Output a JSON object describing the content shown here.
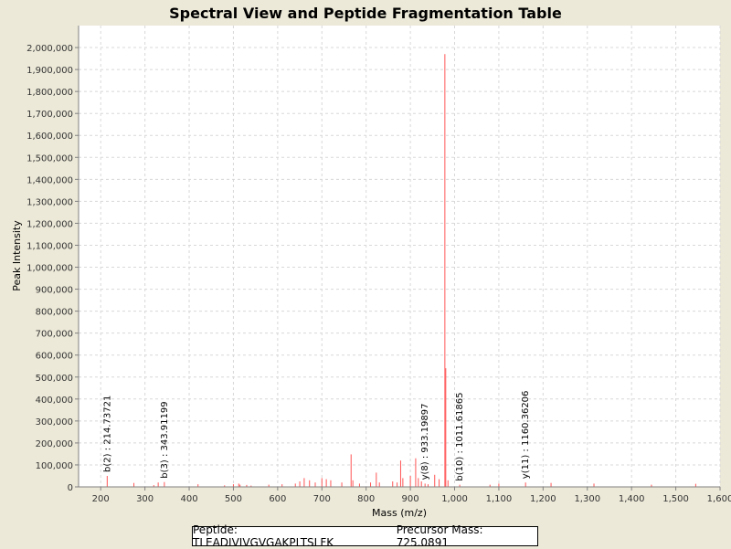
{
  "chart_data": {
    "type": "bar",
    "title": "Spectral View and Peptide Fragmentation Table",
    "xlabel": "Mass (m/z)",
    "ylabel": "Peak Intensity",
    "xlim": [
      150,
      1600
    ],
    "ylim": [
      0,
      2100000
    ],
    "grid": true,
    "x_ticks": [
      200,
      300,
      400,
      500,
      600,
      700,
      800,
      900,
      1000,
      1100,
      1200,
      1300,
      1400,
      1500,
      1600
    ],
    "x_tick_labels": [
      "200",
      "300",
      "400",
      "500",
      "600",
      "700",
      "800",
      "900",
      "1,000",
      "1,100",
      "1,200",
      "1,300",
      "1,400",
      "1,500",
      "1,600"
    ],
    "y_ticks": [
      0,
      100000,
      200000,
      300000,
      400000,
      500000,
      600000,
      700000,
      800000,
      900000,
      1000000,
      1100000,
      1200000,
      1300000,
      1400000,
      1500000,
      1600000,
      1700000,
      1800000,
      1900000,
      2000000
    ],
    "y_tick_labels": [
      "0",
      "100,000",
      "200,000",
      "300,000",
      "400,000",
      "500,000",
      "600,000",
      "700,000",
      "800,000",
      "900,000",
      "1,000,000",
      "1,100,000",
      "1,200,000",
      "1,300,000",
      "1,400,000",
      "1,500,000",
      "1,600,000",
      "1,700,000",
      "1,800,000",
      "1,900,000",
      "2,000,000"
    ],
    "peak_color": "#FF5555",
    "peaks": [
      {
        "mz": 214.7,
        "intensity": 50000
      },
      {
        "mz": 275,
        "intensity": 18000
      },
      {
        "mz": 320,
        "intensity": 8000
      },
      {
        "mz": 330,
        "intensity": 20000
      },
      {
        "mz": 343.9,
        "intensity": 22000
      },
      {
        "mz": 420,
        "intensity": 12000
      },
      {
        "mz": 480,
        "intensity": 7000
      },
      {
        "mz": 500,
        "intensity": 12000
      },
      {
        "mz": 512,
        "intensity": 15000
      },
      {
        "mz": 515,
        "intensity": 10000
      },
      {
        "mz": 530,
        "intensity": 9000
      },
      {
        "mz": 540,
        "intensity": 6000
      },
      {
        "mz": 580,
        "intensity": 10000
      },
      {
        "mz": 610,
        "intensity": 12000
      },
      {
        "mz": 640,
        "intensity": 15000
      },
      {
        "mz": 650,
        "intensity": 25000
      },
      {
        "mz": 660,
        "intensity": 40000
      },
      {
        "mz": 672,
        "intensity": 30000
      },
      {
        "mz": 685,
        "intensity": 20000
      },
      {
        "mz": 700,
        "intensity": 40000
      },
      {
        "mz": 710,
        "intensity": 35000
      },
      {
        "mz": 720,
        "intensity": 30000
      },
      {
        "mz": 745,
        "intensity": 20000
      },
      {
        "mz": 766,
        "intensity": 148000
      },
      {
        "mz": 770,
        "intensity": 30000
      },
      {
        "mz": 785,
        "intensity": 15000
      },
      {
        "mz": 810,
        "intensity": 20000
      },
      {
        "mz": 823,
        "intensity": 65000
      },
      {
        "mz": 830,
        "intensity": 20000
      },
      {
        "mz": 860,
        "intensity": 25000
      },
      {
        "mz": 870,
        "intensity": 20000
      },
      {
        "mz": 878,
        "intensity": 120000
      },
      {
        "mz": 883,
        "intensity": 40000
      },
      {
        "mz": 900,
        "intensity": 50000
      },
      {
        "mz": 912,
        "intensity": 130000
      },
      {
        "mz": 918,
        "intensity": 40000
      },
      {
        "mz": 925,
        "intensity": 25000
      },
      {
        "mz": 933.2,
        "intensity": 15000
      },
      {
        "mz": 940,
        "intensity": 12000
      },
      {
        "mz": 955,
        "intensity": 55000
      },
      {
        "mz": 965,
        "intensity": 35000
      },
      {
        "mz": 978,
        "intensity": 1970000
      },
      {
        "mz": 980,
        "intensity": 540000
      },
      {
        "mz": 985,
        "intensity": 30000
      },
      {
        "mz": 1011.6,
        "intensity": 10000
      },
      {
        "mz": 1080,
        "intensity": 10000
      },
      {
        "mz": 1100,
        "intensity": 15000
      },
      {
        "mz": 1160.4,
        "intensity": 20000
      },
      {
        "mz": 1218,
        "intensity": 18000
      },
      {
        "mz": 1315,
        "intensity": 15000
      },
      {
        "mz": 1445,
        "intensity": 10000
      },
      {
        "mz": 1545,
        "intensity": 14000
      }
    ],
    "annotations": [
      {
        "mz": 214.73721,
        "intensity": 50000,
        "label": "b(2) : 214.73721"
      },
      {
        "mz": 343.91199,
        "intensity": 22000,
        "label": "b(3) : 343.91199"
      },
      {
        "mz": 933.19897,
        "intensity": 15000,
        "label": "y(8) : 933.19897"
      },
      {
        "mz": 1011.61865,
        "intensity": 10000,
        "label": "b(10) : 1011.61865"
      },
      {
        "mz": 1160.36206,
        "intensity": 20000,
        "label": "y(11) : 1160.36206"
      }
    ]
  },
  "legend": {
    "peptide": "Peptide: TLEADIVIVGVGAKPLTSLFK",
    "precursor": "Precursor Mass: 725.0891"
  }
}
